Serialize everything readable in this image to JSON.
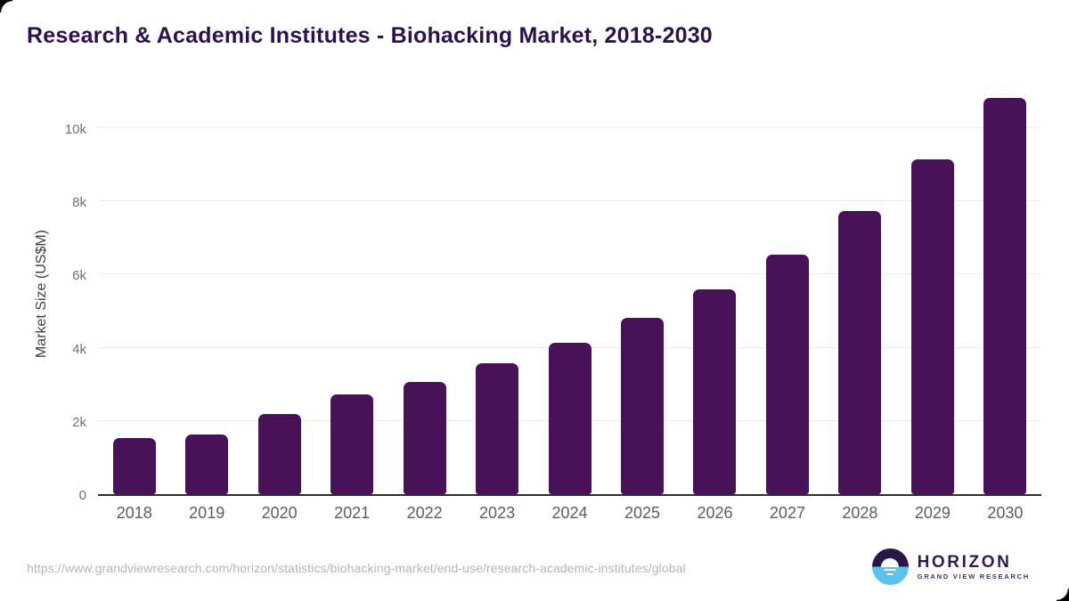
{
  "title": "Research & Academic Institutes - Biohacking Market, 2018-2030",
  "chart_data": {
    "type": "bar",
    "title": "Research & Academic Institutes - Biohacking Market, 2018-2030",
    "categories": [
      "2018",
      "2019",
      "2020",
      "2021",
      "2022",
      "2023",
      "2024",
      "2025",
      "2026",
      "2027",
      "2028",
      "2029",
      "2030"
    ],
    "values": [
      1530,
      1640,
      2190,
      2720,
      3070,
      3580,
      4140,
      4820,
      5600,
      6550,
      7740,
      9160,
      10830
    ],
    "xlabel": "",
    "ylabel": "Market Size (US$M)",
    "ylim": [
      0,
      11120
    ],
    "yticks": [
      {
        "value": 0,
        "label": "0"
      },
      {
        "value": 2000,
        "label": "2k"
      },
      {
        "value": 4000,
        "label": "4k"
      },
      {
        "value": 6000,
        "label": "6k"
      },
      {
        "value": 8000,
        "label": "8k"
      },
      {
        "value": 10000,
        "label": "10k"
      }
    ],
    "grid": true,
    "legend": false,
    "bar_color": "#491157",
    "gridline_color": "#ececec",
    "axis_line_color": "#2f2d32"
  },
  "footer": {
    "source_url": "https://www.grandviewresearch.com/horizon/statistics/biohacking-market/end-use/research-academic-institutes/global",
    "logo": {
      "name": "HORIZON",
      "subtitle": "GRAND VIEW RESEARCH",
      "dark_color": "#2a1745",
      "blue_color": "#5cc3ef"
    }
  },
  "colors": {
    "title": "#2d114c",
    "background": "#ffffff"
  }
}
